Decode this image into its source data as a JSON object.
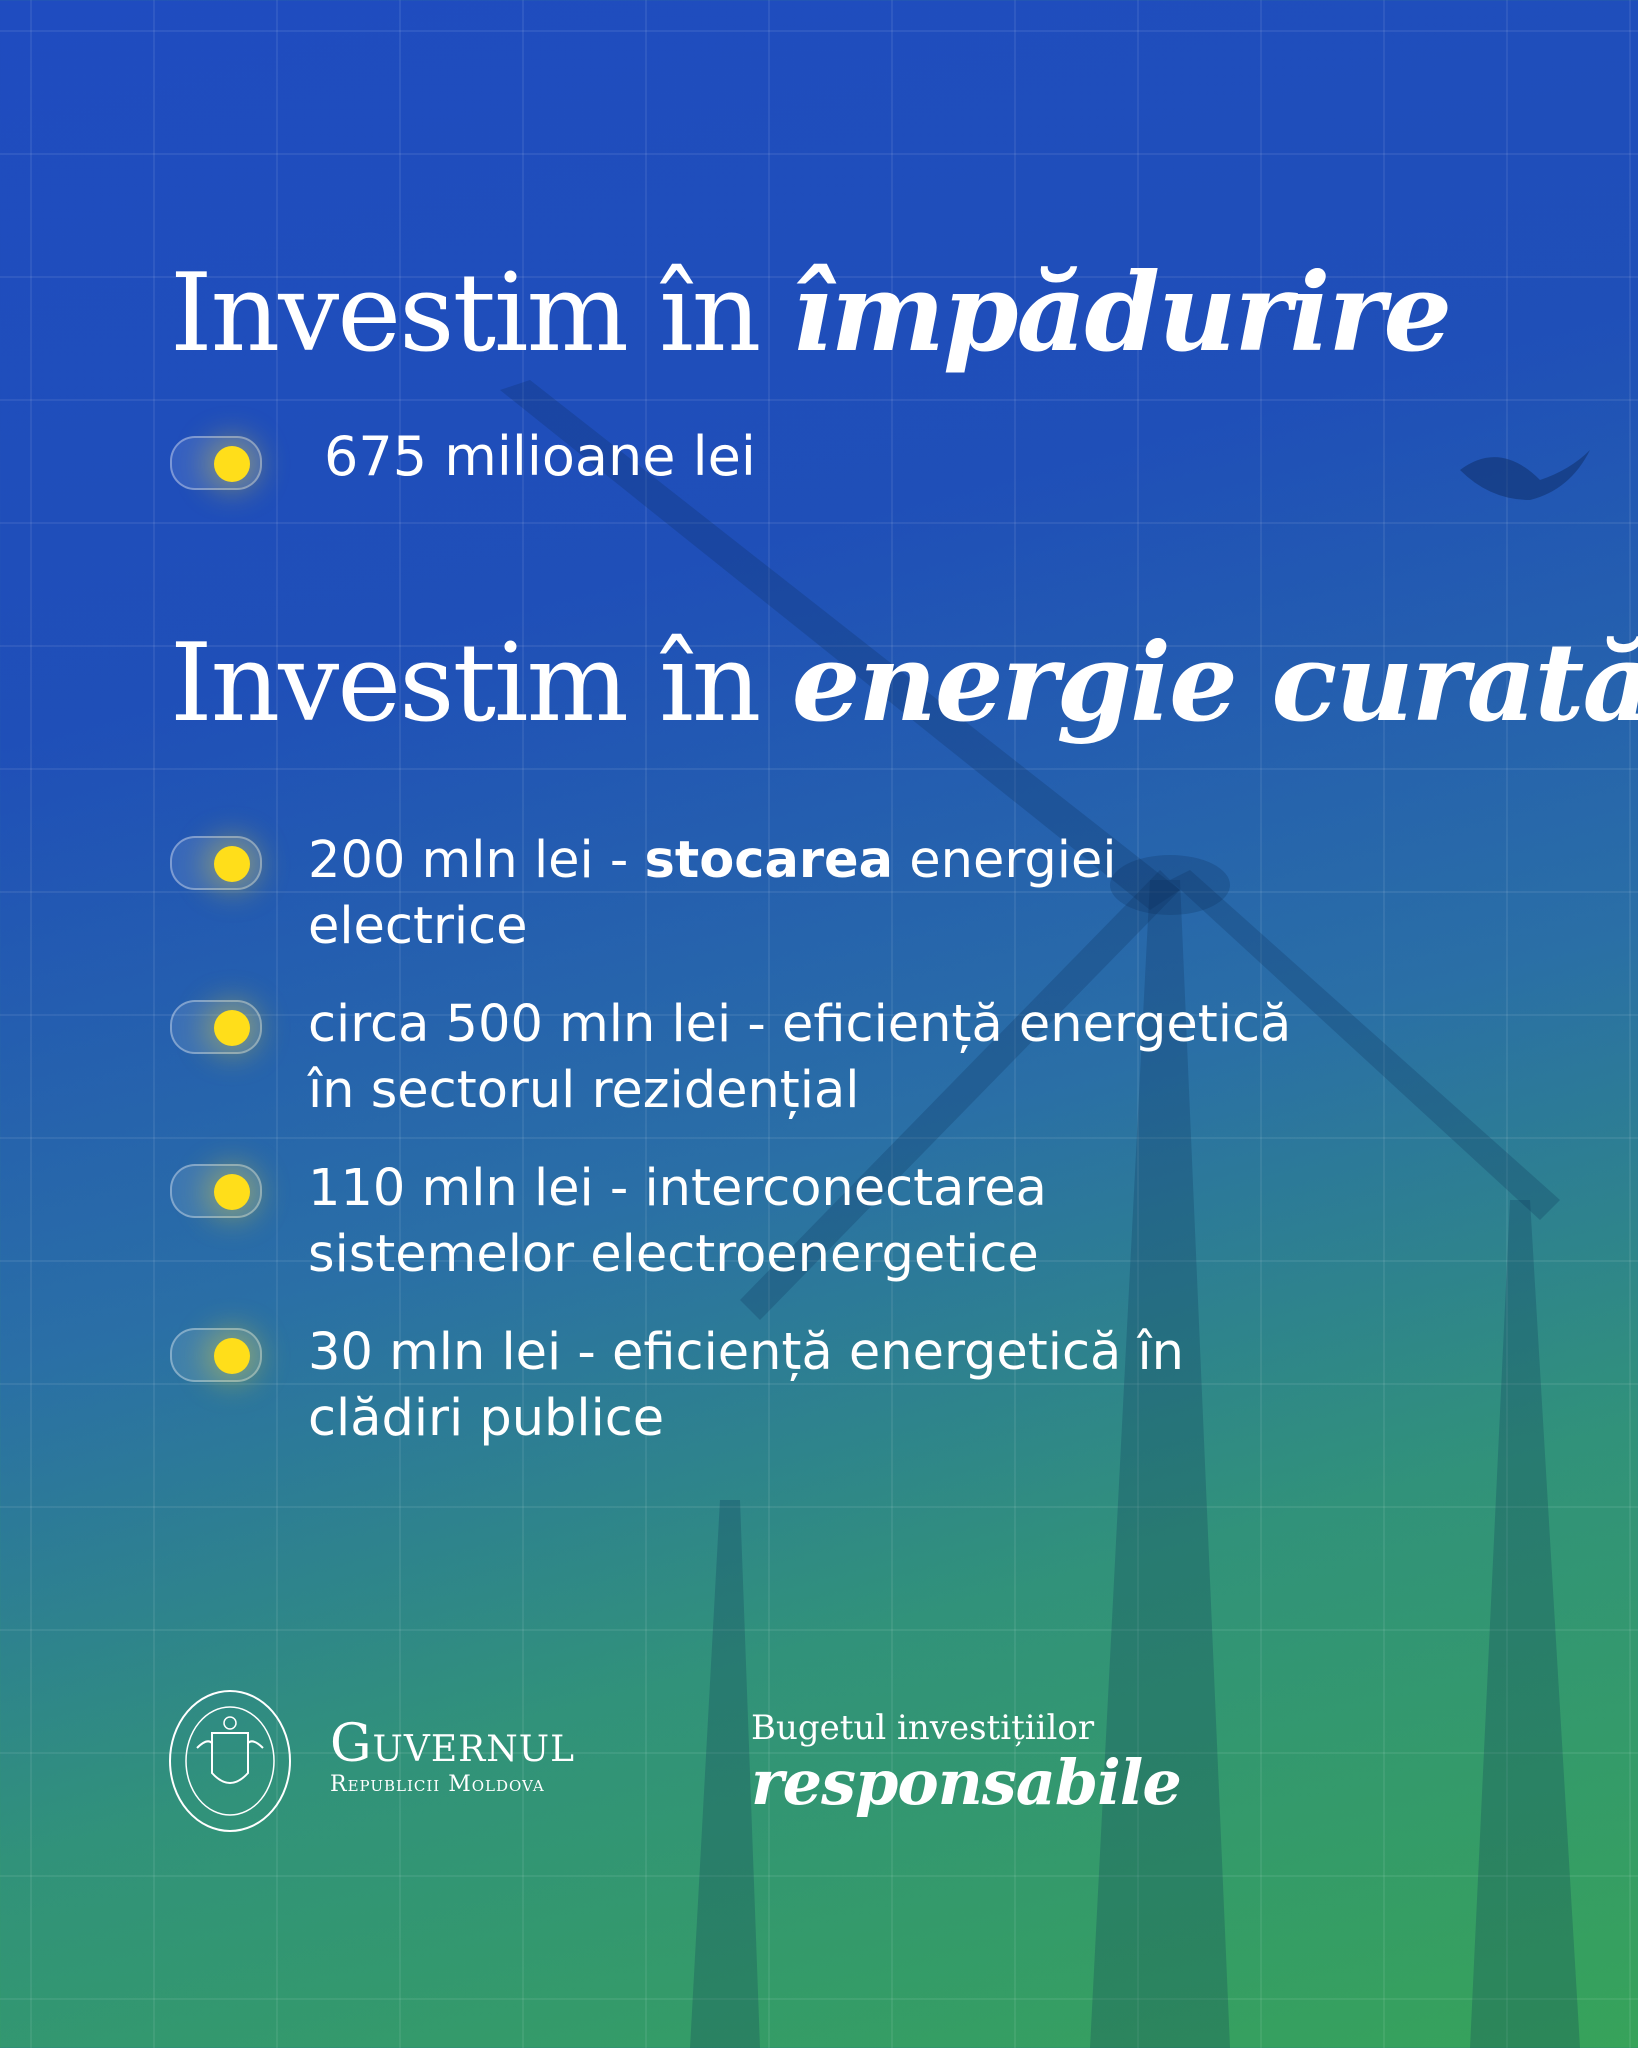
{
  "section1": {
    "title_plain": "Investim în ",
    "title_emph": "împădurire",
    "amount": "675 milioane lei"
  },
  "section2": {
    "title_plain": "Investim în ",
    "title_emph": "energie curată",
    "items": [
      {
        "pre": "200 mln lei - ",
        "bold": "stocarea",
        "post": " energiei electrice"
      },
      {
        "pre": "circa 500 mln lei - eficiență energetică în sectorul rezidențial",
        "bold": "",
        "post": ""
      },
      {
        "pre": "110 mln lei - interconectarea sistemelor electroenergetice",
        "bold": "",
        "post": ""
      },
      {
        "pre": "30 mln lei - eficiență energetică în clădiri publice",
        "bold": "",
        "post": ""
      }
    ]
  },
  "footer": {
    "gov_name": "Guvernul",
    "gov_sub": "Republicii Moldova",
    "seal_text": "GUVERNUL REPUBLICII MOLDOVA",
    "budget_line1": "Bugetul investițiilor",
    "budget_line2": "responsabile"
  },
  "colors": {
    "accent": "#ffde1a",
    "bg_top": "#1f4cc0",
    "bg_bottom": "#37a35a"
  }
}
